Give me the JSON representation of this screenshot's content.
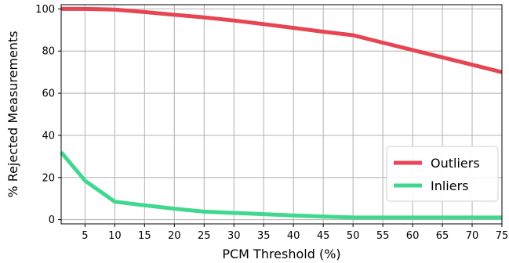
{
  "chart_data": {
    "type": "line",
    "xlabel": "PCM Threshold (%)",
    "ylabel": "% Rejected Measurements",
    "xlim": [
      1,
      75
    ],
    "ylim": [
      -2,
      102
    ],
    "xticks": [
      5,
      10,
      15,
      20,
      25,
      30,
      35,
      40,
      45,
      50,
      55,
      60,
      65,
      70,
      75
    ],
    "yticks": [
      0,
      20,
      40,
      60,
      80,
      100
    ],
    "grid": true,
    "legend_position": "lower-right",
    "x": [
      1,
      5,
      10,
      15,
      20,
      25,
      30,
      35,
      40,
      45,
      50,
      55,
      60,
      65,
      70,
      75
    ],
    "series": [
      {
        "name": "Outliers",
        "color": "#e64553",
        "values": [
          100,
          100,
          99.7,
          98.5,
          97.2,
          96,
          94.5,
          92.8,
          91,
          89.2,
          87.5,
          84,
          80.5,
          77,
          73.5,
          70
        ]
      },
      {
        "name": "Inliers",
        "color": "#40d88f",
        "values": [
          32,
          18.5,
          8.5,
          6.8,
          5.2,
          3.8,
          3.2,
          2.6,
          2.0,
          1.5,
          1.0,
          1.0,
          1.0,
          1.0,
          1.0,
          1.0
        ]
      }
    ]
  }
}
